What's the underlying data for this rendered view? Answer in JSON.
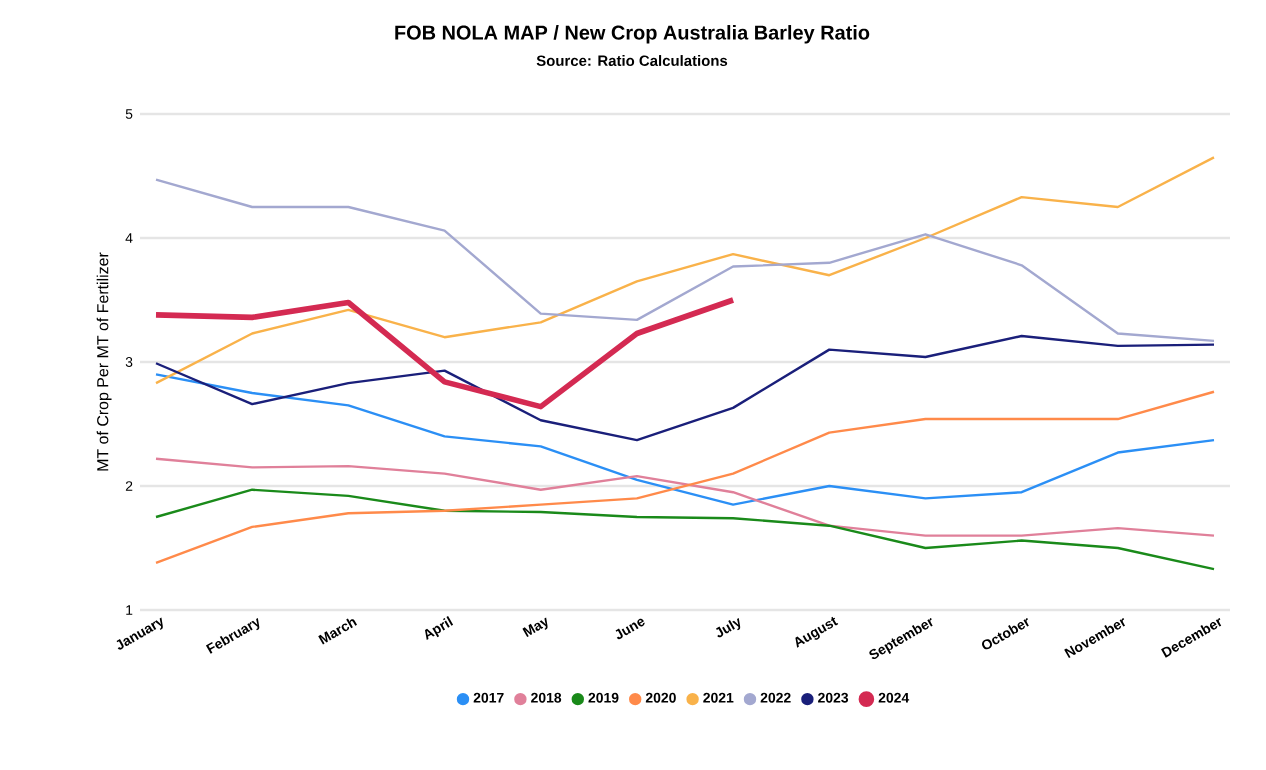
{
  "chart_data": {
    "type": "line",
    "title": "FOB NOLA MAP / New Crop Australia Barley Ratio",
    "subtitle": "Source: Ratio Calculations",
    "ylabel": "MT of Crop Per MT of Fertilizer",
    "categories": [
      "January",
      "February",
      "March",
      "April",
      "May",
      "June",
      "July",
      "August",
      "September",
      "October",
      "November",
      "December"
    ],
    "series": [
      {
        "name": "2017",
        "color": "#2b8ff5",
        "values": [
          2.9,
          2.75,
          2.65,
          2.4,
          2.32,
          2.05,
          1.85,
          2.0,
          1.9,
          1.95,
          2.27,
          2.37
        ]
      },
      {
        "name": "2018",
        "color": "#e0809a",
        "values": [
          2.22,
          2.15,
          2.16,
          2.1,
          1.97,
          2.08,
          1.95,
          1.68,
          1.6,
          1.6,
          1.66,
          1.6
        ]
      },
      {
        "name": "2019",
        "color": "#1a8a1a",
        "values": [
          1.75,
          1.97,
          1.92,
          1.8,
          1.79,
          1.75,
          1.74,
          1.68,
          1.5,
          1.56,
          1.5,
          1.33
        ]
      },
      {
        "name": "2020",
        "color": "#ff8a4a",
        "values": [
          1.38,
          1.67,
          1.78,
          1.8,
          1.85,
          1.9,
          2.1,
          2.43,
          2.54,
          2.54,
          2.54,
          2.76
        ]
      },
      {
        "name": "2021",
        "color": "#f9b24a",
        "values": [
          2.83,
          3.23,
          3.42,
          3.2,
          3.32,
          3.65,
          3.87,
          3.7,
          4.0,
          4.33,
          4.25,
          4.65
        ]
      },
      {
        "name": "2022",
        "color": "#a3a8d0",
        "values": [
          4.47,
          4.25,
          4.25,
          4.06,
          3.39,
          3.34,
          3.77,
          3.8,
          4.03,
          3.78,
          3.23,
          3.17
        ]
      },
      {
        "name": "2023",
        "color": "#1a1f7a",
        "values": [
          2.99,
          2.66,
          2.83,
          2.93,
          2.53,
          2.37,
          2.63,
          3.1,
          3.04,
          3.21,
          3.13,
          3.14
        ]
      },
      {
        "name": "2024",
        "color": "#d42a52",
        "values": [
          3.38,
          3.36,
          3.48,
          2.84,
          2.64,
          3.23,
          3.5,
          null,
          null,
          null,
          null,
          null
        ]
      }
    ],
    "ylim": [
      1,
      5
    ],
    "yticks": [
      1,
      2,
      3,
      4,
      5
    ],
    "grid": "y",
    "legend": "bottom",
    "marker": "none",
    "line_style": "solid"
  }
}
